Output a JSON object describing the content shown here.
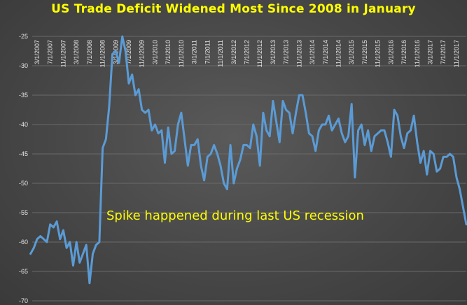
{
  "chart_data": {
    "type": "line",
    "title": "US Trade Deficit Widened Most Since 2008 in January",
    "annotation": "Spike happened during  last US recession",
    "xlabel": "",
    "ylabel": "",
    "ylim": [
      -70,
      -25
    ],
    "y_ticks": [
      -25,
      -30,
      -35,
      -40,
      -45,
      -50,
      -55,
      -60,
      -65,
      -70
    ],
    "grid": true,
    "x_tick_labels": [
      "3/1/2007",
      "7/1/2007",
      "11/1/2007",
      "3/1/2008",
      "7/1/2008",
      "11/1/2008",
      "3/1/2009",
      "7/1/2009",
      "11/1/2009",
      "3/1/2010",
      "7/1/2010",
      "11/1/2010",
      "3/1/2011",
      "7/1/2011",
      "11/1/2011",
      "3/1/2012",
      "7/1/2012",
      "11/1/2012",
      "3/1/2013",
      "7/1/2013",
      "11/1/2013",
      "3/1/2014",
      "7/1/2014",
      "11/1/2014",
      "3/1/2015",
      "7/1/2015",
      "11/1/2015",
      "3/1/2016",
      "7/1/2016",
      "11/1/2016",
      "3/1/2017",
      "7/1/2017",
      "11/1/2017"
    ],
    "line_color": "#5b9bd5",
    "series": [
      {
        "x_start": "2007-01",
        "x_step_months": 1,
        "values": [
          -62,
          -61,
          -59.5,
          -59,
          -59.5,
          -60,
          -57,
          -57.5,
          -56.5,
          -59.5,
          -58,
          -61,
          -60,
          -64,
          -60,
          -63.5,
          -62,
          -60.5,
          -67,
          -62,
          -60.5,
          -60,
          -44,
          -42.5,
          -37,
          -28,
          -27.5,
          -29.5,
          -25,
          -27.5,
          -33,
          -31.5,
          -35,
          -34,
          -37.5,
          -38,
          -37.5,
          -41,
          -40,
          -41.5,
          -41,
          -46.5,
          -40.5,
          -45,
          -44.5,
          -40,
          -38,
          -42.5,
          -47,
          -43.5,
          -43.5,
          -42.5,
          -47,
          -49.5,
          -45.5,
          -45,
          -43.5,
          -45,
          -47,
          -50,
          -51,
          -43.5,
          -50,
          -47.5,
          -46,
          -43.5,
          -43.5,
          -44,
          -40,
          -42,
          -47,
          -38,
          -41,
          -42,
          -36,
          -39.5,
          -43,
          -36,
          -37.5,
          -38,
          -41.5,
          -38,
          -35,
          -35,
          -38,
          -41.5,
          -42,
          -44.5,
          -41,
          -40,
          -40,
          -38.5,
          -41,
          -40,
          -39,
          -41.5,
          -43,
          -42,
          -36.5,
          -49,
          -41,
          -40,
          -43.5,
          -41,
          -44.5,
          -42,
          -41.5,
          -41,
          -41,
          -43,
          -45.5,
          -37.5,
          -38.5,
          -42,
          -44,
          -41.5,
          -41,
          -38.5,
          -43,
          -46.5,
          -44.5,
          -48.5,
          -44.5,
          -45,
          -48,
          -47.5,
          -45.5,
          -45.5,
          -45,
          -45.5,
          -49,
          -51,
          -54,
          -57
        ]
      }
    ]
  }
}
